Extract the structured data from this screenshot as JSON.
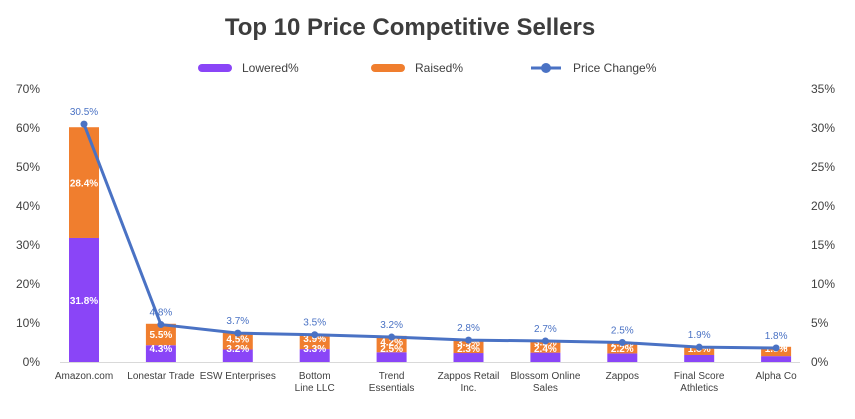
{
  "chart_data": {
    "type": "bar",
    "stacked": true,
    "title": "Top 10 Price Competitive Sellers",
    "categories": [
      [
        "Amazon.com"
      ],
      [
        "Lonestar Trade"
      ],
      [
        "ESW Enterprises"
      ],
      [
        "Bottom",
        "Line LLC"
      ],
      [
        "Trend",
        "Essentials"
      ],
      [
        "Zappos Retail",
        "Inc."
      ],
      [
        "Blossom Online",
        "Sales"
      ],
      [
        "Zappos"
      ],
      [
        "Final Score",
        "Athletics"
      ],
      [
        "Alpha Co"
      ]
    ],
    "series": [
      {
        "name": "Lowered%",
        "kind": "bar",
        "axis": "left",
        "color": "#8a45f7",
        "values": [
          31.8,
          4.3,
          3.2,
          3.3,
          2.5,
          2.3,
          2.4,
          2.2,
          1.8,
          1.5
        ],
        "labels": [
          "31.8%",
          "4.3%",
          "3.2%",
          "3.3%",
          "2.5%",
          "2.3%",
          "2.4%",
          "2.2%",
          "1.8%",
          "1.5%"
        ]
      },
      {
        "name": "Raised%",
        "kind": "bar",
        "axis": "left",
        "color": "#f07e2e",
        "values": [
          28.4,
          5.5,
          4.5,
          3.9,
          4.2,
          3.5,
          3.2,
          2.9,
          1.9,
          2.4
        ],
        "labels": [
          "28.4%",
          "5.5%",
          "4.5%",
          "3.9%",
          "4.2%",
          "3.5%",
          "3.2%",
          "2.9%",
          "1.9%",
          "2.4%"
        ]
      },
      {
        "name": "Price Change%",
        "kind": "line",
        "axis": "right",
        "color": "#4a72c4",
        "values": [
          30.5,
          4.8,
          3.7,
          3.5,
          3.2,
          2.8,
          2.7,
          2.5,
          1.9,
          1.8
        ],
        "labels": [
          "30.5%",
          "4.8%",
          "3.7%",
          "3.5%",
          "3.2%",
          "2.8%",
          "2.7%",
          "2.5%",
          "1.9%",
          "1.8%"
        ]
      }
    ],
    "y_left": {
      "min": 0,
      "max": 70,
      "ticks": [
        "0%",
        "10%",
        "20%",
        "30%",
        "40%",
        "50%",
        "60%",
        "70%"
      ]
    },
    "y_right": {
      "min": 0,
      "max": 35,
      "ticks": [
        "0%",
        "5%",
        "10%",
        "15%",
        "20%",
        "25%",
        "30%",
        "35%"
      ]
    },
    "legend_position": "top",
    "grid": false
  }
}
